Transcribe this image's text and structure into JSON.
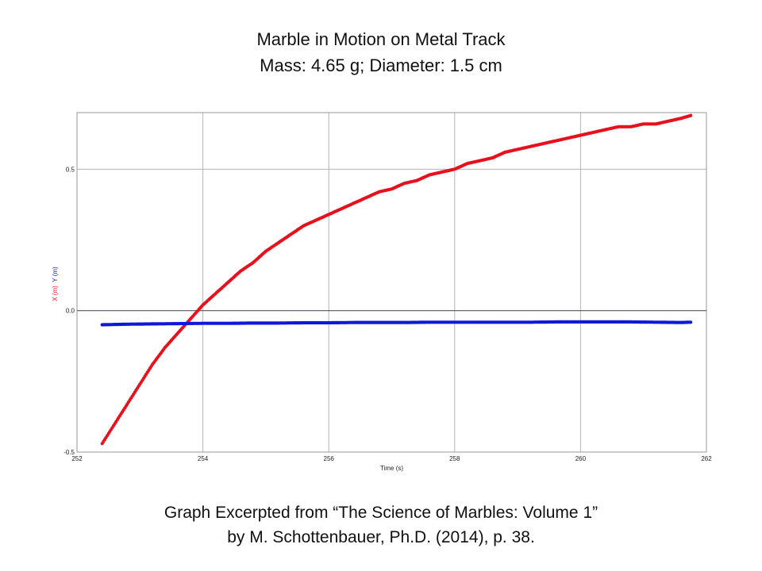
{
  "header": {
    "title_line1": "Marble in Motion on Metal Track",
    "title_line2": "Mass: 4.65 g; Diameter: 1.5 cm"
  },
  "footer": {
    "caption_line1": "Graph Excerpted from “The Science of Marbles: Volume 1”",
    "caption_line2": "by M. Schottenbauer, Ph.D. (2014), p. 38."
  },
  "chart_data": {
    "type": "scatter",
    "title": "Marble in Motion on Metal Track",
    "xlabel": "Time (s)",
    "ylabel_x": "X (m)",
    "ylabel_y": "Y (m)",
    "xlim": [
      252,
      262
    ],
    "ylim": [
      -0.5,
      0.7
    ],
    "x_ticks": [
      "252",
      "254",
      "256",
      "258",
      "260",
      "262"
    ],
    "y_ticks": [
      "-0.5",
      "0.0",
      "0.5"
    ],
    "grid": true,
    "series": [
      {
        "name": "X (m)",
        "color": "#e8101c",
        "x": [
          252.4,
          252.6,
          252.8,
          253.0,
          253.2,
          253.4,
          253.6,
          253.8,
          254.0,
          254.2,
          254.4,
          254.6,
          254.8,
          255.0,
          255.2,
          255.4,
          255.6,
          255.8,
          256.0,
          256.2,
          256.4,
          256.6,
          256.8,
          257.0,
          257.2,
          257.4,
          257.6,
          257.8,
          258.0,
          258.2,
          258.4,
          258.6,
          258.8,
          259.0,
          259.2,
          259.4,
          259.6,
          259.8,
          260.0,
          260.2,
          260.4,
          260.6,
          260.8,
          261.0,
          261.2,
          261.4,
          261.6,
          261.75
        ],
        "values": [
          -0.47,
          -0.4,
          -0.33,
          -0.26,
          -0.19,
          -0.13,
          -0.08,
          -0.03,
          0.02,
          0.06,
          0.1,
          0.14,
          0.17,
          0.21,
          0.24,
          0.27,
          0.3,
          0.32,
          0.34,
          0.36,
          0.38,
          0.4,
          0.42,
          0.43,
          0.45,
          0.46,
          0.48,
          0.49,
          0.5,
          0.52,
          0.53,
          0.54,
          0.56,
          0.57,
          0.58,
          0.59,
          0.6,
          0.61,
          0.62,
          0.63,
          0.64,
          0.65,
          0.65,
          0.66,
          0.66,
          0.67,
          0.68,
          0.69
        ]
      },
      {
        "name": "Y (m)",
        "color": "#1018d8",
        "x": [
          252.4,
          252.8,
          253.2,
          253.6,
          254.0,
          254.4,
          254.8,
          255.2,
          255.6,
          256.0,
          256.4,
          256.8,
          257.2,
          257.6,
          258.0,
          258.4,
          258.8,
          259.2,
          259.6,
          260.0,
          260.4,
          260.8,
          261.2,
          261.6,
          261.75
        ],
        "values": [
          -0.05,
          -0.048,
          -0.047,
          -0.046,
          -0.045,
          -0.045,
          -0.044,
          -0.044,
          -0.043,
          -0.043,
          -0.042,
          -0.042,
          -0.042,
          -0.041,
          -0.041,
          -0.041,
          -0.041,
          -0.041,
          -0.04,
          -0.04,
          -0.04,
          -0.04,
          -0.041,
          -0.042,
          -0.041
        ]
      }
    ]
  }
}
